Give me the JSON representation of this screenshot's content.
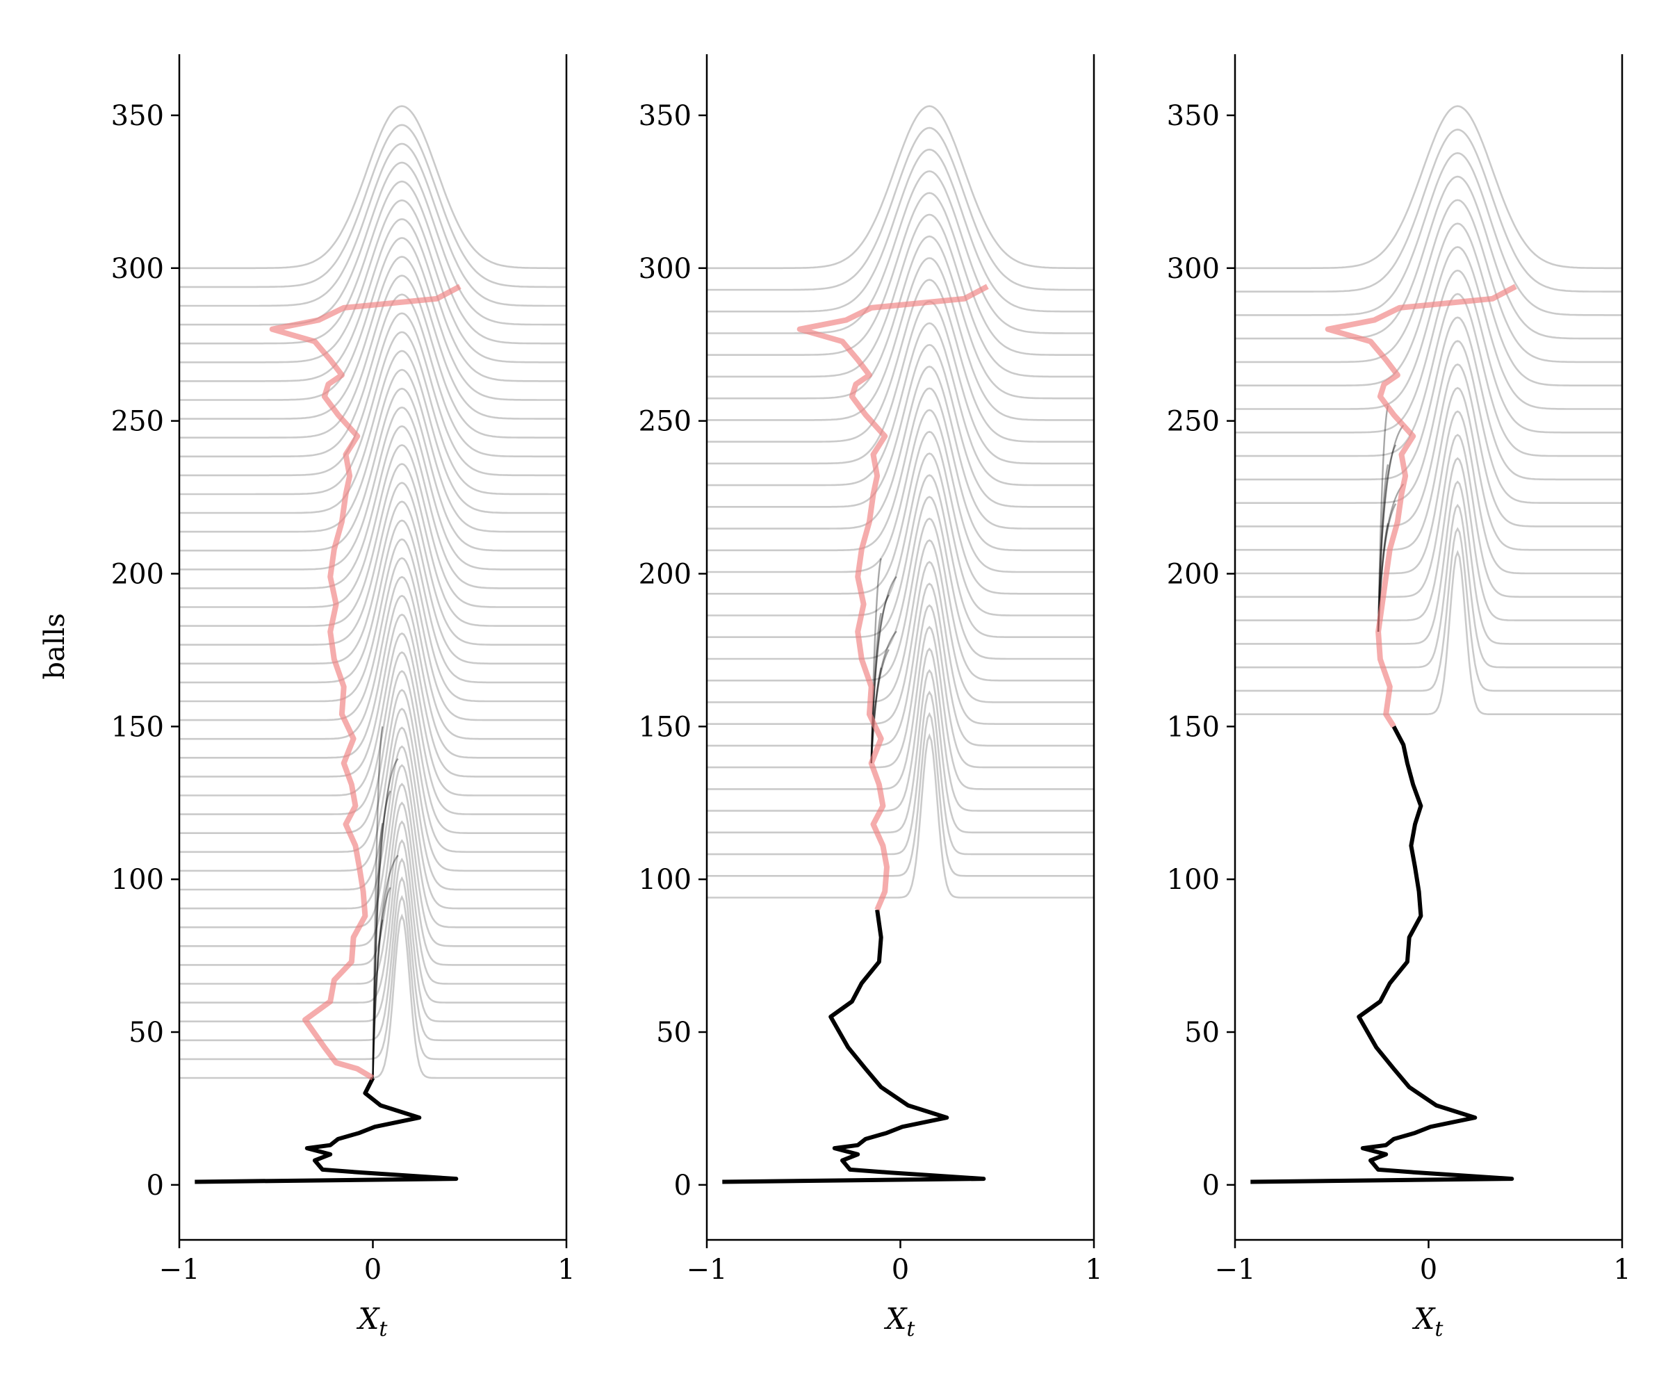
{
  "chart_data": [
    {
      "type": "line",
      "panel": 1,
      "xlabel": "X_t",
      "ylabel": "balls",
      "xlim": [
        -1,
        1
      ],
      "ylim": [
        -18,
        370
      ],
      "xticks": [
        -1,
        0,
        1
      ],
      "xtick_labels": [
        "−1",
        "0",
        "1"
      ],
      "yticks": [
        0,
        50,
        100,
        150,
        200,
        250,
        300,
        350
      ],
      "ytick_labels": [
        "0",
        "50",
        "100",
        "150",
        "200",
        "250",
        "300",
        "350"
      ],
      "observed_until": 35,
      "density_curves": {
        "count": 44,
        "base_start": 35,
        "base_end": 300,
        "center": 0.15,
        "peak_height": 53,
        "color": "#bdbdbd"
      },
      "forecast_fan": {
        "start": 35,
        "end": 150,
        "color": "#000000"
      },
      "series": [
        {
          "values": [
            [
              -0.92,
              1
            ],
            [
              0.43,
              2
            ],
            [
              -0.05,
              4
            ],
            [
              -0.26,
              5
            ],
            [
              -0.3,
              8
            ],
            [
              -0.22,
              10
            ],
            [
              -0.34,
              12
            ],
            [
              -0.22,
              13
            ],
            [
              -0.18,
              15
            ],
            [
              -0.07,
              17
            ],
            [
              0.01,
              19
            ],
            [
              0.24,
              22
            ],
            [
              0.04,
              26
            ],
            [
              0.0,
              28
            ],
            [
              -0.04,
              30
            ],
            [
              0.0,
              35
            ]
          ]
        },
        {
          "values": [
            [
              0.0,
              35
            ],
            [
              -0.08,
              38
            ],
            [
              -0.19,
              40
            ],
            [
              -0.25,
              45
            ],
            [
              -0.35,
              54
            ],
            [
              -0.22,
              60
            ],
            [
              -0.2,
              67
            ],
            [
              -0.11,
              73
            ],
            [
              -0.1,
              81
            ],
            [
              -0.04,
              88
            ],
            [
              -0.05,
              96
            ],
            [
              -0.07,
              104
            ],
            [
              -0.09,
              111
            ],
            [
              -0.14,
              118
            ],
            [
              -0.09,
              124
            ],
            [
              -0.11,
              131
            ],
            [
              -0.15,
              138
            ],
            [
              -0.1,
              146
            ],
            [
              -0.16,
              154
            ],
            [
              -0.15,
              163
            ],
            [
              -0.2,
              172
            ],
            [
              -0.22,
              181
            ],
            [
              -0.19,
              190
            ],
            [
              -0.22,
              199
            ],
            [
              -0.2,
              208
            ],
            [
              -0.16,
              217
            ],
            [
              -0.14,
              226
            ],
            [
              -0.12,
              232
            ],
            [
              -0.14,
              239
            ],
            [
              -0.08,
              245
            ],
            [
              -0.18,
              252
            ],
            [
              -0.25,
              258
            ],
            [
              -0.23,
              262
            ],
            [
              -0.16,
              265
            ],
            [
              -0.22,
              270
            ],
            [
              -0.3,
              276
            ],
            [
              -0.52,
              280
            ],
            [
              -0.28,
              283
            ],
            [
              -0.15,
              287
            ],
            [
              0.33,
              290
            ],
            [
              0.45,
              294
            ]
          ]
        }
      ]
    },
    {
      "type": "line",
      "panel": 2,
      "xlabel": "X_t",
      "ylabel": "",
      "xlim": [
        -1,
        1
      ],
      "ylim": [
        -18,
        370
      ],
      "xticks": [
        -1,
        0,
        1
      ],
      "xtick_labels": [
        "−1",
        "0",
        "1"
      ],
      "yticks": [
        0,
        50,
        100,
        150,
        200,
        250,
        300,
        350
      ],
      "ytick_labels": [
        "0",
        "50",
        "100",
        "150",
        "200",
        "250",
        "300",
        "350"
      ],
      "observed_until": 90,
      "density_curves": {
        "count": 30,
        "base_start": 94,
        "base_end": 300,
        "center": 0.15,
        "peak_height": 53,
        "color": "#bdbdbd"
      },
      "forecast_fan": {
        "start": 140,
        "end": 205,
        "color": "#000000"
      },
      "series": [
        {
          "values": [
            [
              -0.92,
              1
            ],
            [
              0.43,
              2
            ],
            [
              -0.05,
              4
            ],
            [
              -0.26,
              5
            ],
            [
              -0.3,
              8
            ],
            [
              -0.22,
              10
            ],
            [
              -0.34,
              12
            ],
            [
              -0.22,
              13
            ],
            [
              -0.18,
              15
            ],
            [
              -0.07,
              17
            ],
            [
              0.01,
              19
            ],
            [
              0.24,
              22
            ],
            [
              0.04,
              26
            ],
            [
              -0.1,
              32
            ],
            [
              -0.18,
              38
            ],
            [
              -0.27,
              45
            ],
            [
              -0.36,
              55
            ],
            [
              -0.25,
              60
            ],
            [
              -0.2,
              66
            ],
            [
              -0.11,
              73
            ],
            [
              -0.1,
              81
            ],
            [
              -0.12,
              90
            ]
          ]
        },
        {
          "values": [
            [
              -0.12,
              90
            ],
            [
              -0.08,
              96
            ],
            [
              -0.07,
              104
            ],
            [
              -0.09,
              111
            ],
            [
              -0.14,
              118
            ],
            [
              -0.09,
              124
            ],
            [
              -0.11,
              131
            ],
            [
              -0.15,
              138
            ],
            [
              -0.1,
              146
            ],
            [
              -0.16,
              154
            ],
            [
              -0.15,
              163
            ],
            [
              -0.2,
              172
            ],
            [
              -0.22,
              181
            ],
            [
              -0.19,
              190
            ],
            [
              -0.22,
              199
            ],
            [
              -0.2,
              208
            ],
            [
              -0.16,
              217
            ],
            [
              -0.14,
              226
            ],
            [
              -0.12,
              232
            ],
            [
              -0.14,
              239
            ],
            [
              -0.08,
              245
            ],
            [
              -0.18,
              252
            ],
            [
              -0.25,
              258
            ],
            [
              -0.23,
              262
            ],
            [
              -0.16,
              265
            ],
            [
              -0.22,
              270
            ],
            [
              -0.3,
              276
            ],
            [
              -0.52,
              280
            ],
            [
              -0.28,
              283
            ],
            [
              -0.15,
              287
            ],
            [
              0.33,
              290
            ],
            [
              0.45,
              294
            ]
          ]
        }
      ]
    },
    {
      "type": "line",
      "panel": 3,
      "xlabel": "X_t",
      "ylabel": "",
      "xlim": [
        -1,
        1
      ],
      "ylim": [
        -18,
        370
      ],
      "xticks": [
        -1,
        0,
        1
      ],
      "xtick_labels": [
        "−1",
        "0",
        "1"
      ],
      "yticks": [
        0,
        50,
        100,
        150,
        200,
        250,
        300,
        350
      ],
      "ytick_labels": [
        "0",
        "50",
        "100",
        "150",
        "200",
        "250",
        "300",
        "350"
      ],
      "observed_until": 150,
      "density_curves": {
        "count": 20,
        "base_start": 154,
        "base_end": 300,
        "center": 0.15,
        "peak_height": 53,
        "color": "#bdbdbd"
      },
      "forecast_fan": {
        "start": 185,
        "end": 255,
        "color": "#000000"
      },
      "series": [
        {
          "values": [
            [
              -0.92,
              1
            ],
            [
              0.43,
              2
            ],
            [
              -0.05,
              4
            ],
            [
              -0.26,
              5
            ],
            [
              -0.3,
              8
            ],
            [
              -0.22,
              10
            ],
            [
              -0.34,
              12
            ],
            [
              -0.22,
              13
            ],
            [
              -0.18,
              15
            ],
            [
              -0.07,
              17
            ],
            [
              0.01,
              19
            ],
            [
              0.24,
              22
            ],
            [
              0.04,
              26
            ],
            [
              -0.1,
              32
            ],
            [
              -0.18,
              38
            ],
            [
              -0.27,
              45
            ],
            [
              -0.36,
              55
            ],
            [
              -0.25,
              60
            ],
            [
              -0.2,
              66
            ],
            [
              -0.11,
              73
            ],
            [
              -0.1,
              81
            ],
            [
              -0.04,
              88
            ],
            [
              -0.05,
              96
            ],
            [
              -0.07,
              104
            ],
            [
              -0.09,
              111
            ],
            [
              -0.07,
              118
            ],
            [
              -0.04,
              124
            ],
            [
              -0.08,
              131
            ],
            [
              -0.11,
              138
            ],
            [
              -0.13,
              144
            ],
            [
              -0.18,
              150
            ]
          ]
        },
        {
          "values": [
            [
              -0.18,
              150
            ],
            [
              -0.22,
              154
            ],
            [
              -0.2,
              163
            ],
            [
              -0.25,
              172
            ],
            [
              -0.26,
              181
            ],
            [
              -0.24,
              190
            ],
            [
              -0.22,
              199
            ],
            [
              -0.2,
              208
            ],
            [
              -0.16,
              217
            ],
            [
              -0.14,
              226
            ],
            [
              -0.12,
              232
            ],
            [
              -0.14,
              239
            ],
            [
              -0.08,
              245
            ],
            [
              -0.18,
              252
            ],
            [
              -0.25,
              258
            ],
            [
              -0.23,
              262
            ],
            [
              -0.16,
              265
            ],
            [
              -0.22,
              270
            ],
            [
              -0.3,
              276
            ],
            [
              -0.52,
              280
            ],
            [
              -0.28,
              283
            ],
            [
              -0.15,
              287
            ],
            [
              0.33,
              290
            ],
            [
              0.45,
              294
            ]
          ]
        }
      ]
    }
  ]
}
